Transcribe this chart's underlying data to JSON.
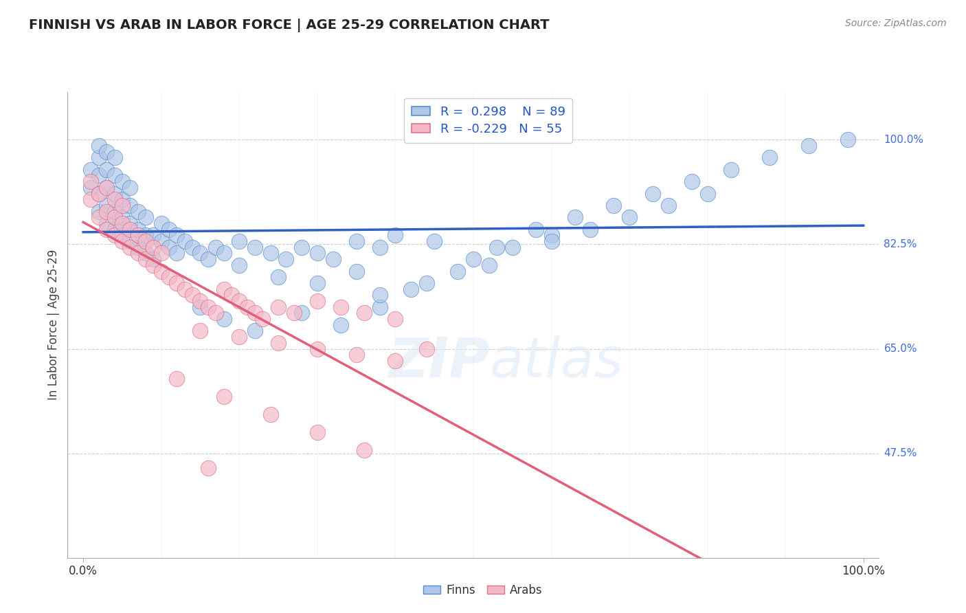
{
  "title": "FINNISH VS ARAB IN LABOR FORCE | AGE 25-29 CORRELATION CHART",
  "source": "Source: ZipAtlas.com",
  "ylabel": "In Labor Force | Age 25-29",
  "background_color": "#ffffff",
  "finn_color": "#aec6e8",
  "arab_color": "#f4b8c8",
  "finn_edge_color": "#5b8ec9",
  "arab_edge_color": "#d9748a",
  "finn_line_color": "#3060c0",
  "arab_line_color": "#e0607a",
  "finn_R": 0.298,
  "finn_N": 89,
  "arab_R": -0.229,
  "arab_N": 55,
  "legend_finn": "Finns",
  "legend_arab": "Arabs",
  "grid_color": "#d0d0d0",
  "right_label_color": "#4169e1",
  "right_ticks": [
    [
      1.0,
      "100.0%"
    ],
    [
      0.825,
      "82.5%"
    ],
    [
      0.65,
      "65.0%"
    ],
    [
      0.475,
      "47.5%"
    ]
  ],
  "xlim": [
    -0.02,
    1.02
  ],
  "ylim": [
    0.3,
    1.08
  ],
  "finn_scatter_x": [
    0.01,
    0.01,
    0.02,
    0.02,
    0.02,
    0.02,
    0.02,
    0.03,
    0.03,
    0.03,
    0.03,
    0.03,
    0.04,
    0.04,
    0.04,
    0.04,
    0.04,
    0.05,
    0.05,
    0.05,
    0.05,
    0.06,
    0.06,
    0.06,
    0.06,
    0.07,
    0.07,
    0.07,
    0.08,
    0.08,
    0.08,
    0.09,
    0.09,
    0.1,
    0.1,
    0.11,
    0.11,
    0.12,
    0.12,
    0.13,
    0.14,
    0.15,
    0.16,
    0.17,
    0.18,
    0.2,
    0.22,
    0.24,
    0.26,
    0.28,
    0.3,
    0.32,
    0.35,
    0.38,
    0.4,
    0.45,
    0.3,
    0.35,
    0.2,
    0.25,
    0.15,
    0.18,
    0.22,
    0.28,
    0.33,
    0.38,
    0.42,
    0.48,
    0.53,
    0.58,
    0.63,
    0.68,
    0.73,
    0.78,
    0.83,
    0.88,
    0.93,
    0.98,
    0.5,
    0.55,
    0.6,
    0.65,
    0.7,
    0.75,
    0.8,
    0.38,
    0.44,
    0.52,
    0.6
  ],
  "finn_scatter_y": [
    0.92,
    0.95,
    0.88,
    0.91,
    0.94,
    0.97,
    0.99,
    0.86,
    0.89,
    0.92,
    0.95,
    0.98,
    0.85,
    0.88,
    0.91,
    0.94,
    0.97,
    0.84,
    0.87,
    0.9,
    0.93,
    0.83,
    0.86,
    0.89,
    0.92,
    0.82,
    0.85,
    0.88,
    0.81,
    0.84,
    0.87,
    0.8,
    0.84,
    0.83,
    0.86,
    0.82,
    0.85,
    0.81,
    0.84,
    0.83,
    0.82,
    0.81,
    0.8,
    0.82,
    0.81,
    0.83,
    0.82,
    0.81,
    0.8,
    0.82,
    0.81,
    0.8,
    0.83,
    0.82,
    0.84,
    0.83,
    0.76,
    0.78,
    0.79,
    0.77,
    0.72,
    0.7,
    0.68,
    0.71,
    0.69,
    0.72,
    0.75,
    0.78,
    0.82,
    0.85,
    0.87,
    0.89,
    0.91,
    0.93,
    0.95,
    0.97,
    0.99,
    1.0,
    0.8,
    0.82,
    0.84,
    0.85,
    0.87,
    0.89,
    0.91,
    0.74,
    0.76,
    0.79,
    0.83
  ],
  "arab_scatter_x": [
    0.01,
    0.01,
    0.02,
    0.02,
    0.03,
    0.03,
    0.03,
    0.04,
    0.04,
    0.04,
    0.05,
    0.05,
    0.05,
    0.06,
    0.06,
    0.07,
    0.07,
    0.08,
    0.08,
    0.09,
    0.09,
    0.1,
    0.1,
    0.11,
    0.12,
    0.13,
    0.14,
    0.15,
    0.16,
    0.17,
    0.18,
    0.19,
    0.2,
    0.21,
    0.22,
    0.23,
    0.25,
    0.27,
    0.3,
    0.33,
    0.36,
    0.4,
    0.44,
    0.15,
    0.2,
    0.25,
    0.3,
    0.35,
    0.4,
    0.12,
    0.18,
    0.24,
    0.3,
    0.36,
    0.16
  ],
  "arab_scatter_y": [
    0.9,
    0.93,
    0.87,
    0.91,
    0.85,
    0.88,
    0.92,
    0.84,
    0.87,
    0.9,
    0.83,
    0.86,
    0.89,
    0.82,
    0.85,
    0.81,
    0.84,
    0.8,
    0.83,
    0.79,
    0.82,
    0.78,
    0.81,
    0.77,
    0.76,
    0.75,
    0.74,
    0.73,
    0.72,
    0.71,
    0.75,
    0.74,
    0.73,
    0.72,
    0.71,
    0.7,
    0.72,
    0.71,
    0.73,
    0.72,
    0.71,
    0.7,
    0.65,
    0.68,
    0.67,
    0.66,
    0.65,
    0.64,
    0.63,
    0.6,
    0.57,
    0.54,
    0.51,
    0.48,
    0.45
  ]
}
